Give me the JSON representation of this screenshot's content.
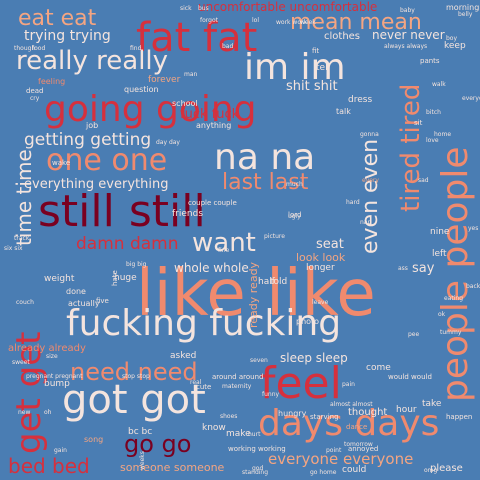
{
  "colors": {
    "background": "#4a7db3",
    "pale": "#f4e4de",
    "salmon": "#f08a6e",
    "coral": "#f4a582",
    "red": "#d6303d",
    "darkred": "#7a0020",
    "white": "#ffffff"
  },
  "words": [
    {
      "text": "like like",
      "color": "salmon"
    },
    {
      "text": "still still",
      "color": "darkred"
    },
    {
      "text": "going going",
      "color": "red"
    },
    {
      "text": "fat fat",
      "color": "red"
    },
    {
      "text": "fucking fucking",
      "color": "pale"
    },
    {
      "text": "got got",
      "color": "pale"
    },
    {
      "text": "people people",
      "color": "salmon"
    },
    {
      "text": "get get",
      "color": "red"
    },
    {
      "text": "feel",
      "color": "red"
    },
    {
      "text": "days days",
      "color": "salmon"
    },
    {
      "text": "im im",
      "color": "pale"
    },
    {
      "text": "na na",
      "color": "pale"
    },
    {
      "text": "one one",
      "color": "salmon"
    },
    {
      "text": "really really",
      "color": "pale"
    },
    {
      "text": "mean mean",
      "color": "coral"
    },
    {
      "text": "eat eat",
      "color": "coral"
    },
    {
      "text": "tired tired",
      "color": "salmon"
    },
    {
      "text": "last last",
      "color": "salmon"
    },
    {
      "text": "want",
      "color": "pale"
    },
    {
      "text": "time time",
      "color": "pale"
    },
    {
      "text": "even even",
      "color": "pale"
    },
    {
      "text": "need need",
      "color": "salmon"
    },
    {
      "text": "go go",
      "color": "darkred"
    },
    {
      "text": "everyone everyone",
      "color": "coral"
    },
    {
      "text": "bed bed",
      "color": "red"
    },
    {
      "text": "damn damn",
      "color": "red"
    },
    {
      "text": "getting getting",
      "color": "pale"
    },
    {
      "text": "trying trying",
      "color": "pale"
    },
    {
      "text": "everything everything",
      "color": "pale"
    },
    {
      "text": "shit shit",
      "color": "pale"
    },
    {
      "text": "fuck fuck",
      "color": "red"
    },
    {
      "text": "whole whole",
      "color": "pale"
    },
    {
      "text": "sleep sleep",
      "color": "pale"
    },
    {
      "text": "never never",
      "color": "pale"
    },
    {
      "text": "say",
      "color": "pale"
    },
    {
      "text": "seat",
      "color": "pale"
    },
    {
      "text": "look look",
      "color": "coral"
    },
    {
      "text": "someone someone",
      "color": "coral"
    },
    {
      "text": "ready ready",
      "color": "coral"
    },
    {
      "text": "uncomfortable uncomfortable",
      "color": "red"
    },
    {
      "text": "clothes",
      "color": "pale"
    },
    {
      "text": "already already",
      "color": "salmon"
    },
    {
      "text": "thought",
      "color": "pale"
    },
    {
      "text": "please",
      "color": "pale"
    },
    {
      "text": "could",
      "color": "pale"
    },
    {
      "text": "know",
      "color": "pale"
    },
    {
      "text": "make",
      "color": "pale"
    },
    {
      "text": "come",
      "color": "pale"
    },
    {
      "text": "take",
      "color": "pale"
    },
    {
      "text": "hour",
      "color": "pale"
    },
    {
      "text": "half",
      "color": "pale"
    },
    {
      "text": "told",
      "color": "pale"
    },
    {
      "text": "longer",
      "color": "pale"
    },
    {
      "text": "nine",
      "color": "pale"
    },
    {
      "text": "left",
      "color": "pale"
    },
    {
      "text": "friends",
      "color": "pale"
    },
    {
      "text": "weight",
      "color": "pale"
    },
    {
      "text": "actually",
      "color": "pale"
    },
    {
      "text": "done",
      "color": "pale"
    },
    {
      "text": "bump",
      "color": "pale"
    },
    {
      "text": "asked",
      "color": "pale"
    },
    {
      "text": "forever",
      "color": "coral"
    },
    {
      "text": "feeling",
      "color": "salmon"
    },
    {
      "text": "question",
      "color": "pale"
    },
    {
      "text": "school",
      "color": "pale"
    },
    {
      "text": "job",
      "color": "pale"
    },
    {
      "text": "anything",
      "color": "pale"
    },
    {
      "text": "dress",
      "color": "pale"
    },
    {
      "text": "talk",
      "color": "pale"
    },
    {
      "text": "keep",
      "color": "pale"
    },
    {
      "text": "cute",
      "color": "pale"
    },
    {
      "text": "maternity",
      "color": "pale"
    },
    {
      "text": "starving",
      "color": "pale"
    },
    {
      "text": "hungry",
      "color": "pale"
    },
    {
      "text": "dance",
      "color": "coral"
    },
    {
      "text": "annoyed",
      "color": "pale"
    },
    {
      "text": "would would",
      "color": "pale"
    },
    {
      "text": "working working",
      "color": "pale"
    },
    {
      "text": "bc bc",
      "color": "pale"
    },
    {
      "text": "around around",
      "color": "pale"
    },
    {
      "text": "couple couple",
      "color": "pale"
    },
    {
      "text": "photo",
      "color": "pale"
    },
    {
      "text": "sit",
      "color": "pale"
    },
    {
      "text": "standing",
      "color": "pale"
    },
    {
      "text": "six six",
      "color": "pale"
    },
    {
      "text": "big big",
      "color": "pale"
    },
    {
      "text": "wake",
      "color": "pale"
    },
    {
      "text": "huge",
      "color": "pale"
    },
    {
      "text": "find",
      "color": "pale"
    },
    {
      "text": "bad",
      "color": "pale"
    },
    {
      "text": "tell",
      "color": "pale"
    },
    {
      "text": "fit",
      "color": "pale"
    },
    {
      "text": "dead",
      "color": "pale"
    },
    {
      "text": "though",
      "color": "pale"
    },
    {
      "text": "forgot",
      "color": "pale"
    },
    {
      "text": "pants",
      "color": "pale"
    },
    {
      "text": "always always",
      "color": "pale"
    },
    {
      "text": "song",
      "color": "coral"
    },
    {
      "text": "happen",
      "color": "pale"
    },
    {
      "text": "hate",
      "color": "pale"
    },
    {
      "text": "five",
      "color": "pale"
    },
    {
      "text": "go home",
      "color": "pale"
    },
    {
      "text": "lord",
      "color": "pale"
    },
    {
      "text": "leave",
      "color": "pale"
    },
    {
      "text": "hard",
      "color": "pale"
    },
    {
      "text": "track",
      "color": "pale"
    },
    {
      "text": "stop stop",
      "color": "pale"
    },
    {
      "text": "bus",
      "color": "pale"
    },
    {
      "text": "sick",
      "color": "pale"
    },
    {
      "text": "seven",
      "color": "pale"
    },
    {
      "text": "morning",
      "color": "pale"
    },
    {
      "text": "every",
      "color": "coral"
    },
    {
      "text": "tomorrow",
      "color": "pale"
    },
    {
      "text": "almost almost",
      "color": "pale"
    },
    {
      "text": "ass",
      "color": "pale"
    },
    {
      "text": "work work",
      "color": "pale"
    },
    {
      "text": "bitch",
      "color": "pale"
    },
    {
      "text": "lol",
      "color": "pale"
    },
    {
      "text": "nap",
      "color": "pale"
    },
    {
      "text": "pain",
      "color": "pale"
    },
    {
      "text": "baby",
      "color": "pale"
    },
    {
      "text": "everyday",
      "color": "pale"
    },
    {
      "text": "gonna",
      "color": "pale"
    },
    {
      "text": "much",
      "color": "pale"
    },
    {
      "text": "point",
      "color": "pale"
    },
    {
      "text": "picture",
      "color": "pale"
    },
    {
      "text": "fine",
      "color": "pale"
    },
    {
      "text": "funny",
      "color": "pale"
    },
    {
      "text": "size",
      "color": "pale"
    },
    {
      "text": "weeks",
      "color": "pale"
    },
    {
      "text": "pregnant pregnant",
      "color": "pale"
    },
    {
      "text": "oh",
      "color": "pale"
    },
    {
      "text": "week",
      "color": "pale"
    },
    {
      "text": "home",
      "color": "pale"
    },
    {
      "text": "sad",
      "color": "pale"
    },
    {
      "text": "yes",
      "color": "pale"
    },
    {
      "text": "new",
      "color": "pale"
    },
    {
      "text": "food",
      "color": "pale"
    },
    {
      "text": "sweet",
      "color": "pale"
    },
    {
      "text": "man",
      "color": "pale"
    },
    {
      "text": "boy",
      "color": "pale"
    },
    {
      "text": "cry",
      "color": "pale"
    },
    {
      "text": "real",
      "color": "pale"
    },
    {
      "text": "hurt",
      "color": "pale"
    },
    {
      "text": "eating",
      "color": "pale"
    },
    {
      "text": "couch",
      "color": "pale"
    },
    {
      "text": "belly",
      "color": "pale"
    },
    {
      "text": "gain",
      "color": "pale"
    },
    {
      "text": "shoes",
      "color": "pale"
    },
    {
      "text": "ugly",
      "color": "pale"
    },
    {
      "text": "tummy",
      "color": "pale"
    },
    {
      "text": "back back",
      "color": "pale"
    },
    {
      "text": "day day",
      "color": "pale"
    },
    {
      "text": "god",
      "color": "pale"
    },
    {
      "text": "love",
      "color": "pale"
    },
    {
      "text": "ok",
      "color": "pale"
    },
    {
      "text": "omg",
      "color": "pale"
    },
    {
      "text": "pee",
      "color": "pale"
    },
    {
      "text": "walk",
      "color": "pale"
    },
    {
      "text": "sore",
      "color": "pale"
    },
    {
      "text": "got lol",
      "color": "pale"
    },
    {
      "text": "hours",
      "color": "pale"
    }
  ]
}
